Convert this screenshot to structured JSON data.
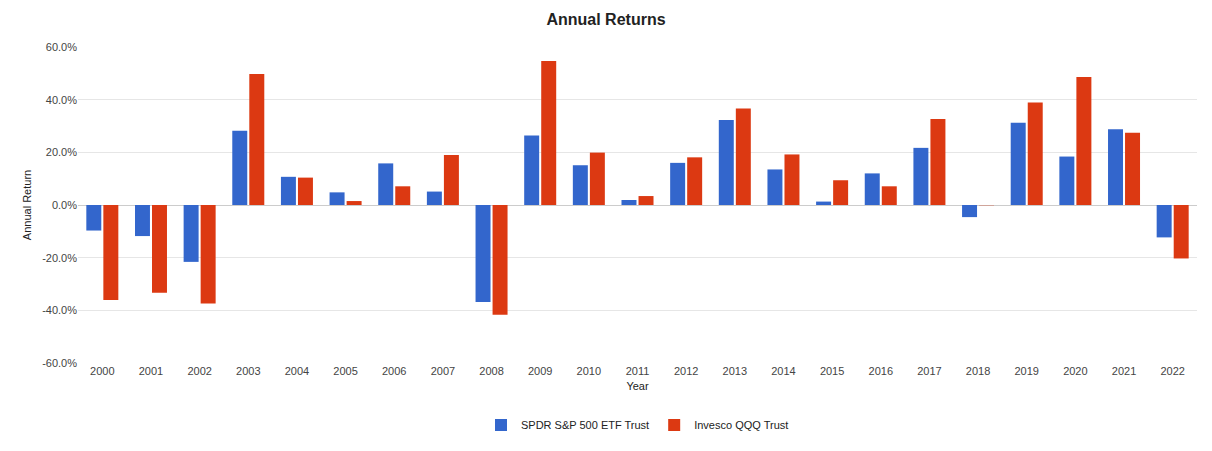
{
  "chart_data": {
    "type": "bar",
    "title": "Annual Returns",
    "x_label": "Year",
    "y_label": "Annual Return",
    "categories": [
      "2000",
      "2001",
      "2002",
      "2003",
      "2004",
      "2005",
      "2006",
      "2007",
      "2008",
      "2009",
      "2010",
      "2011",
      "2012",
      "2013",
      "2014",
      "2015",
      "2016",
      "2017",
      "2018",
      "2019",
      "2020",
      "2021",
      "2022"
    ],
    "series": [
      {
        "name": "SPDR S&P 500 ETF Trust",
        "color": "#3366cc",
        "values": [
          -9.7,
          -11.8,
          -21.6,
          28.2,
          10.7,
          4.8,
          15.8,
          5.1,
          -36.8,
          26.4,
          15.1,
          1.9,
          16.0,
          32.3,
          13.5,
          1.3,
          12.0,
          21.7,
          -4.6,
          31.2,
          18.4,
          28.8,
          -12.3
        ]
      },
      {
        "name": "Invesco QQQ Trust",
        "color": "#dc3912",
        "values": [
          -36.1,
          -33.3,
          -37.4,
          49.7,
          10.4,
          1.5,
          7.1,
          19.0,
          -41.7,
          54.7,
          19.9,
          3.4,
          18.1,
          36.6,
          19.2,
          9.4,
          7.1,
          32.7,
          -0.1,
          38.9,
          48.6,
          27.4,
          -20.3
        ]
      }
    ],
    "ylim": [
      -60,
      60
    ],
    "yticks": [
      {
        "value": -60,
        "label": "-60.0%"
      },
      {
        "value": -40,
        "label": "-40.0%"
      },
      {
        "value": -20,
        "label": "-20.0%"
      },
      {
        "value": 0,
        "label": "0.0%"
      },
      {
        "value": 20,
        "label": "20.0%"
      },
      {
        "value": 40,
        "label": "40.0%"
      },
      {
        "value": 60,
        "label": "60.0%"
      }
    ],
    "grid": true,
    "legend": "bottom"
  }
}
